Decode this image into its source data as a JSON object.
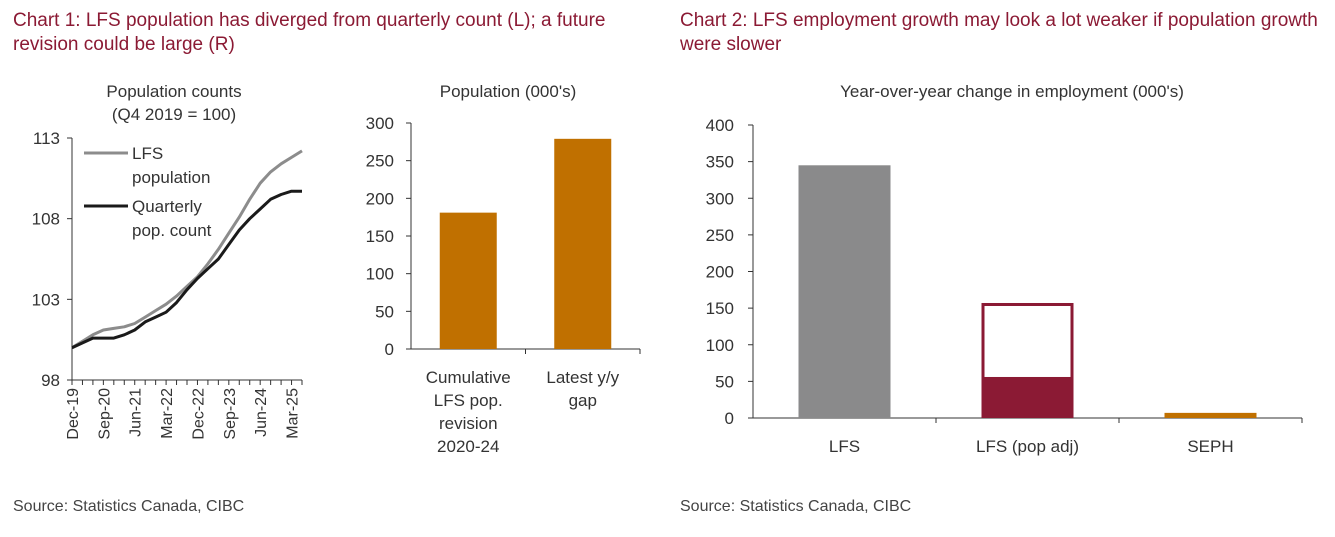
{
  "titles": {
    "chart1": "Chart 1: LFS population has diverged from quarterly count (L); a future revision could be large (R)",
    "chart2": "Chart 2: LFS employment growth may look a lot weaker if population growth were slower"
  },
  "sources": {
    "left": "Source: Statistics Canada, CIBC",
    "right": "Source: Statistics Canada, CIBC"
  },
  "colors": {
    "title": "#8b1a34",
    "lfs_pop_line": "#8c8c8c",
    "quarterly_line": "#1a1a1a",
    "orange_bar": "#c07000",
    "grey_bar": "#8a8a8b",
    "maroon": "#8b1a34"
  },
  "chart_data": [
    {
      "type": "line",
      "title": "Population counts",
      "subtitle": "(Q4 2019 = 100)",
      "ylim": [
        98,
        113
      ],
      "yticks": [
        98,
        103,
        108,
        113
      ],
      "xtick_labels": [
        "Dec-19",
        "Sep-20",
        "Jun-21",
        "Mar-22",
        "Dec-22",
        "Sep-23",
        "Jun-24",
        "Mar-25"
      ],
      "x": [
        "Dec-19",
        "Mar-20",
        "Jun-20",
        "Sep-20",
        "Dec-20",
        "Mar-21",
        "Jun-21",
        "Sep-21",
        "Dec-21",
        "Mar-22",
        "Jun-22",
        "Sep-22",
        "Dec-22",
        "Mar-23",
        "Jun-23",
        "Sep-23",
        "Dec-23",
        "Mar-24",
        "Jun-24",
        "Sep-24",
        "Dec-24",
        "Mar-25",
        "Jun-25"
      ],
      "series": [
        {
          "name": "LFS population",
          "color": "#8c8c8c",
          "values": [
            100.0,
            100.4,
            100.8,
            101.1,
            101.2,
            101.3,
            101.5,
            101.9,
            102.3,
            102.7,
            103.2,
            103.8,
            104.4,
            105.2,
            106.1,
            107.1,
            108.1,
            109.2,
            110.2,
            110.9,
            111.4,
            111.8,
            112.2
          ]
        },
        {
          "name": "Quarterly pop. count",
          "color": "#1a1a1a",
          "values": [
            100.0,
            100.3,
            100.6,
            100.6,
            100.6,
            100.8,
            101.1,
            101.6,
            101.9,
            102.2,
            102.8,
            103.6,
            104.3,
            104.9,
            105.5,
            106.4,
            107.3,
            108.0,
            108.6,
            109.2,
            109.5,
            109.7,
            109.7
          ]
        }
      ],
      "legend": {
        "position": "top-left",
        "labels": [
          [
            "LFS",
            "population"
          ],
          [
            "Quarterly",
            "pop. count"
          ]
        ]
      }
    },
    {
      "type": "bar",
      "title": "Population (000's)",
      "ylim": [
        0,
        300
      ],
      "yticks": [
        0,
        50,
        100,
        150,
        200,
        250,
        300
      ],
      "categories": [
        [
          "Cumulative",
          "LFS pop.",
          "revision",
          "2020-24"
        ],
        [
          "Latest y/y",
          "gap"
        ]
      ],
      "values": [
        181,
        279
      ],
      "color": "#c07000"
    },
    {
      "type": "bar",
      "title": "Year-over-year change in employment (000's)",
      "ylim": [
        0,
        400
      ],
      "yticks": [
        0,
        50,
        100,
        150,
        200,
        250,
        300,
        350,
        400
      ],
      "categories": [
        "LFS",
        "LFS (pop adj)",
        "SEPH"
      ],
      "values": [
        345,
        56,
        7
      ],
      "outline_values": [
        null,
        157,
        null
      ],
      "colors": [
        "#8a8a8b",
        "#8b1a34",
        "#c07000"
      ]
    }
  ]
}
